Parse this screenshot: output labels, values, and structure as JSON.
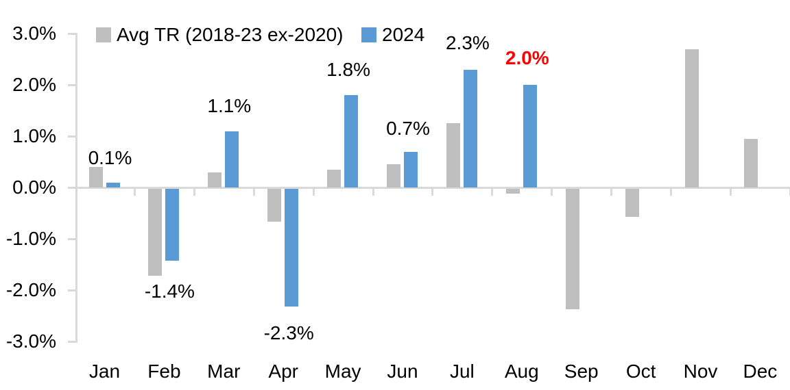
{
  "chart_data": {
    "type": "bar",
    "title": "",
    "categories": [
      "Jan",
      "Feb",
      "Mar",
      "Apr",
      "May",
      "Jun",
      "Jul",
      "Aug",
      "Sep",
      "Oct",
      "Nov",
      "Dec"
    ],
    "series": [
      {
        "name": "Avg TR (2018-23 ex-2020)",
        "color": "#BFBFBF",
        "values": [
          0.4,
          -1.7,
          0.3,
          -0.65,
          0.35,
          0.45,
          1.25,
          -0.1,
          -2.35,
          -0.55,
          2.7,
          0.95
        ]
      },
      {
        "name": "2024",
        "color": "#5B9BD5",
        "values": [
          0.1,
          -1.4,
          1.1,
          -2.3,
          1.8,
          0.7,
          2.3,
          2.0,
          null,
          null,
          null,
          null
        ],
        "data_labels": [
          {
            "text": "0.1%",
            "color": "#000000",
            "bold": false
          },
          {
            "text": "-1.4%",
            "color": "#000000",
            "bold": false
          },
          {
            "text": "1.1%",
            "color": "#000000",
            "bold": false
          },
          {
            "text": "-2.3%",
            "color": "#000000",
            "bold": false
          },
          {
            "text": "1.8%",
            "color": "#000000",
            "bold": false
          },
          {
            "text": "0.7%",
            "color": "#000000",
            "bold": false
          },
          {
            "text": "2.3%",
            "color": "#000000",
            "bold": false
          },
          {
            "text": "2.0%",
            "color": "#FF0000",
            "bold": true
          },
          null,
          null,
          null,
          null
        ]
      }
    ],
    "y_axis": {
      "min": -3,
      "max": 3,
      "tick_step": 1,
      "tick_labels": [
        "3.0%",
        "2.0%",
        "1.0%",
        "0.0%",
        "-1.0%",
        "-2.0%",
        "-3.0%"
      ]
    },
    "legend_position": "top",
    "grid": false,
    "axis_color": "#D9D9D9",
    "background": "#FFFFFF"
  }
}
